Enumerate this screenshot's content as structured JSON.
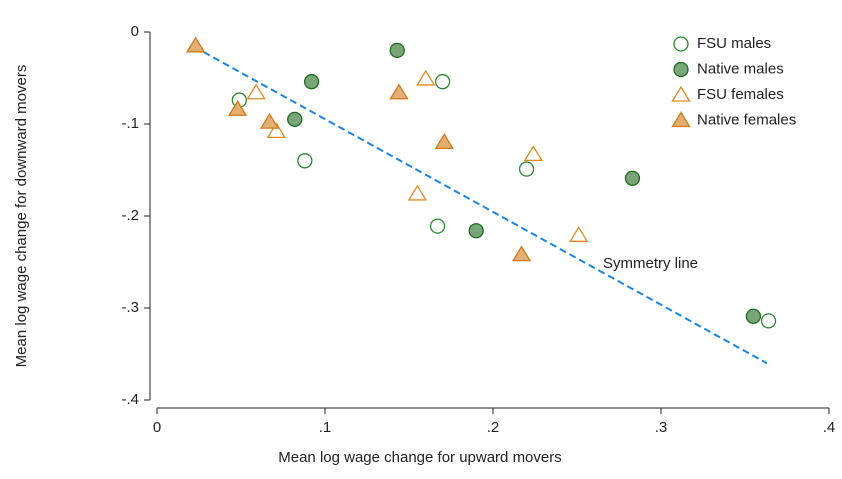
{
  "chart_data": {
    "type": "scatter",
    "x_label": "Mean log wage change for upward movers",
    "y_label": "Mean log wage change for downward movers",
    "xlim": [
      0,
      0.4
    ],
    "ylim": [
      -0.4,
      0
    ],
    "xticks": [
      0,
      {
        "value": 0.1,
        "label": ".1"
      },
      {
        "value": 0.2,
        "label": ".2"
      },
      {
        "value": 0.3,
        "label": ".3"
      },
      {
        "value": 0.4,
        "label": ".4"
      }
    ],
    "yticks": [
      0,
      {
        "value": -0.1,
        "label": "-.1"
      },
      {
        "value": -0.2,
        "label": "-.2"
      },
      {
        "value": -0.3,
        "label": "-.3"
      },
      {
        "value": -0.4,
        "label": "-.4"
      }
    ],
    "legend": "top right",
    "series": [
      {
        "name": "FSU males",
        "color": "#2a8a2a",
        "marker": "circle",
        "filled": false,
        "x": [
          0.049,
          0.088,
          0.17,
          0.167,
          0.22,
          0.364
        ],
        "values": [
          -0.074,
          -0.14,
          -0.054,
          -0.211,
          -0.149,
          -0.314
        ]
      },
      {
        "name": "Native males",
        "color": "#1f6b1f",
        "marker": "circle",
        "filled": true,
        "x": [
          0.092,
          0.082,
          0.143,
          0.19,
          0.283,
          0.355
        ],
        "values": [
          -0.054,
          -0.095,
          -0.02,
          -0.216,
          -0.159,
          -0.309
        ]
      },
      {
        "name": "FSU females",
        "color": "#e08a20",
        "marker": "triangle",
        "filled": false,
        "x": [
          0.059,
          0.071,
          0.16,
          0.155,
          0.224,
          0.251
        ],
        "values": [
          -0.066,
          -0.108,
          -0.051,
          -0.176,
          -0.133,
          -0.221
        ]
      },
      {
        "name": "Native females",
        "color": "#d07a18",
        "marker": "triangle",
        "filled": true,
        "x": [
          0.023,
          0.048,
          0.067,
          0.144,
          0.171,
          0.217
        ],
        "values": [
          -0.015,
          -0.084,
          -0.098,
          -0.066,
          -0.12,
          -0.242
        ]
      }
    ],
    "symmetry_line": {
      "label": "Symmetry line",
      "color": "#1a85e6",
      "x": [
        0.022,
        0.363
      ],
      "values": [
        -0.016,
        -0.36
      ]
    }
  }
}
